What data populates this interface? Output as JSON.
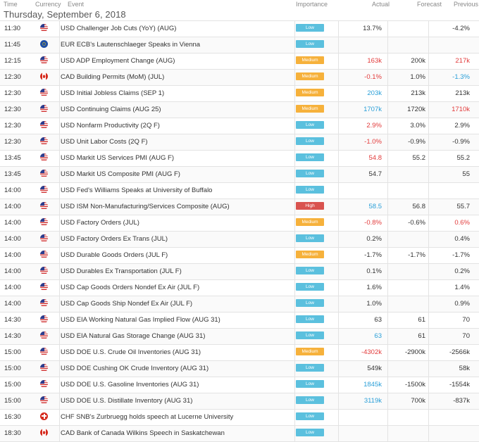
{
  "header": {
    "time": "Time",
    "currency": "Currency",
    "event": "Event",
    "importance": "Importance",
    "actual": "Actual",
    "forecast": "Forecast",
    "previous": "Previous"
  },
  "date": "Thursday, September 6, 2018",
  "colors": {
    "low": "#5bc0de",
    "medium": "#f6b13b",
    "high": "#d9534f",
    "red": "#e23b3b",
    "blue": "#2a9fd8",
    "black": "#333333"
  },
  "events": [
    {
      "time": "11:30",
      "flag": "us",
      "event": "USD Challenger Job Cuts (YoY) (AUG)",
      "importance": "Low",
      "actual": "13.7%",
      "actual_color": "black",
      "forecast": "",
      "previous": "-4.2%",
      "previous_color": "black"
    },
    {
      "time": "11:45",
      "flag": "eu",
      "event": "EUR ECB's Lautenschlaeger Speaks in Vienna",
      "importance": "Low",
      "actual": "",
      "actual_color": "black",
      "forecast": "",
      "previous": "",
      "previous_color": "black"
    },
    {
      "time": "12:15",
      "flag": "us",
      "event": "USD ADP Employment Change (AUG)",
      "importance": "Medium",
      "actual": "163k",
      "actual_color": "red",
      "forecast": "200k",
      "previous": "217k",
      "previous_color": "red"
    },
    {
      "time": "12:30",
      "flag": "ca",
      "event": "CAD Building Permits (MoM) (JUL)",
      "importance": "Medium",
      "actual": "-0.1%",
      "actual_color": "red",
      "forecast": "1.0%",
      "previous": "-1.3%",
      "previous_color": "blue"
    },
    {
      "time": "12:30",
      "flag": "us",
      "event": "USD Initial Jobless Claims (SEP 1)",
      "importance": "Medium",
      "actual": "203k",
      "actual_color": "blue",
      "forecast": "213k",
      "previous": "213k",
      "previous_color": "black"
    },
    {
      "time": "12:30",
      "flag": "us",
      "event": "USD Continuing Claims (AUG 25)",
      "importance": "Medium",
      "actual": "1707k",
      "actual_color": "blue",
      "forecast": "1720k",
      "previous": "1710k",
      "previous_color": "red"
    },
    {
      "time": "12:30",
      "flag": "us",
      "event": "USD Nonfarm Productivity (2Q F)",
      "importance": "Low",
      "actual": "2.9%",
      "actual_color": "red",
      "forecast": "3.0%",
      "previous": "2.9%",
      "previous_color": "black"
    },
    {
      "time": "12:30",
      "flag": "us",
      "event": "USD Unit Labor Costs (2Q F)",
      "importance": "Low",
      "actual": "-1.0%",
      "actual_color": "red",
      "forecast": "-0.9%",
      "previous": "-0.9%",
      "previous_color": "black"
    },
    {
      "time": "13:45",
      "flag": "us",
      "event": "USD Markit US Services PMI (AUG F)",
      "importance": "Low",
      "actual": "54.8",
      "actual_color": "red",
      "forecast": "55.2",
      "previous": "55.2",
      "previous_color": "black"
    },
    {
      "time": "13:45",
      "flag": "us",
      "event": "USD Markit US Composite PMI (AUG F)",
      "importance": "Low",
      "actual": "54.7",
      "actual_color": "black",
      "forecast": "",
      "previous": "55",
      "previous_color": "black"
    },
    {
      "time": "14:00",
      "flag": "us",
      "event": "USD Fed's Williams Speaks at University of Buffalo",
      "importance": "Low",
      "actual": "",
      "actual_color": "black",
      "forecast": "",
      "previous": "",
      "previous_color": "black"
    },
    {
      "time": "14:00",
      "flag": "us",
      "event": "USD ISM Non-Manufacturing/Services Composite (AUG)",
      "importance": "High",
      "actual": "58.5",
      "actual_color": "blue",
      "forecast": "56.8",
      "previous": "55.7",
      "previous_color": "black"
    },
    {
      "time": "14:00",
      "flag": "us",
      "event": "USD Factory Orders (JUL)",
      "importance": "Medium",
      "actual": "-0.8%",
      "actual_color": "red",
      "forecast": "-0.6%",
      "previous": "0.6%",
      "previous_color": "red"
    },
    {
      "time": "14:00",
      "flag": "us",
      "event": "USD Factory Orders Ex Trans (JUL)",
      "importance": "Low",
      "actual": "0.2%",
      "actual_color": "black",
      "forecast": "",
      "previous": "0.4%",
      "previous_color": "black"
    },
    {
      "time": "14:00",
      "flag": "us",
      "event": "USD Durable Goods Orders (JUL F)",
      "importance": "Medium",
      "actual": "-1.7%",
      "actual_color": "black",
      "forecast": "-1.7%",
      "previous": "-1.7%",
      "previous_color": "black"
    },
    {
      "time": "14:00",
      "flag": "us",
      "event": "USD Durables Ex Transportation (JUL F)",
      "importance": "Low",
      "actual": "0.1%",
      "actual_color": "black",
      "forecast": "",
      "previous": "0.2%",
      "previous_color": "black"
    },
    {
      "time": "14:00",
      "flag": "us",
      "event": "USD Cap Goods Orders Nondef Ex Air (JUL F)",
      "importance": "Low",
      "actual": "1.6%",
      "actual_color": "black",
      "forecast": "",
      "previous": "1.4%",
      "previous_color": "black"
    },
    {
      "time": "14:00",
      "flag": "us",
      "event": "USD Cap Goods Ship Nondef Ex Air (JUL F)",
      "importance": "Low",
      "actual": "1.0%",
      "actual_color": "black",
      "forecast": "",
      "previous": "0.9%",
      "previous_color": "black"
    },
    {
      "time": "14:30",
      "flag": "us",
      "event": "USD EIA Working Natural Gas Implied Flow (AUG 31)",
      "importance": "Low",
      "actual": "63",
      "actual_color": "black",
      "forecast": "61",
      "previous": "70",
      "previous_color": "black"
    },
    {
      "time": "14:30",
      "flag": "us",
      "event": "USD EIA Natural Gas Storage Change (AUG 31)",
      "importance": "Low",
      "actual": "63",
      "actual_color": "blue",
      "forecast": "61",
      "previous": "70",
      "previous_color": "black"
    },
    {
      "time": "15:00",
      "flag": "us",
      "event": "USD DOE U.S. Crude Oil Inventories (AUG 31)",
      "importance": "Medium",
      "actual": "-4302k",
      "actual_color": "red",
      "forecast": "-2900k",
      "previous": "-2566k",
      "previous_color": "black"
    },
    {
      "time": "15:00",
      "flag": "us",
      "event": "USD DOE Cushing OK Crude Inventory (AUG 31)",
      "importance": "Low",
      "actual": "549k",
      "actual_color": "black",
      "forecast": "",
      "previous": "58k",
      "previous_color": "black"
    },
    {
      "time": "15:00",
      "flag": "us",
      "event": "USD DOE U.S. Gasoline Inventories (AUG 31)",
      "importance": "Low",
      "actual": "1845k",
      "actual_color": "blue",
      "forecast": "-1500k",
      "previous": "-1554k",
      "previous_color": "black"
    },
    {
      "time": "15:00",
      "flag": "us",
      "event": "USD DOE U.S. Distillate Inventory (AUG 31)",
      "importance": "Low",
      "actual": "3119k",
      "actual_color": "blue",
      "forecast": "700k",
      "previous": "-837k",
      "previous_color": "black"
    },
    {
      "time": "16:30",
      "flag": "ch",
      "event": "CHF SNB's Zurbruegg holds speech at Lucerne University",
      "importance": "Low",
      "actual": "",
      "actual_color": "black",
      "forecast": "",
      "previous": "",
      "previous_color": "black"
    },
    {
      "time": "18:30",
      "flag": "ca",
      "event": "CAD Bank of Canada Wilkins Speech in Saskatchewan",
      "importance": "Low",
      "actual": "",
      "actual_color": "black",
      "forecast": "",
      "previous": "",
      "previous_color": "black"
    }
  ]
}
